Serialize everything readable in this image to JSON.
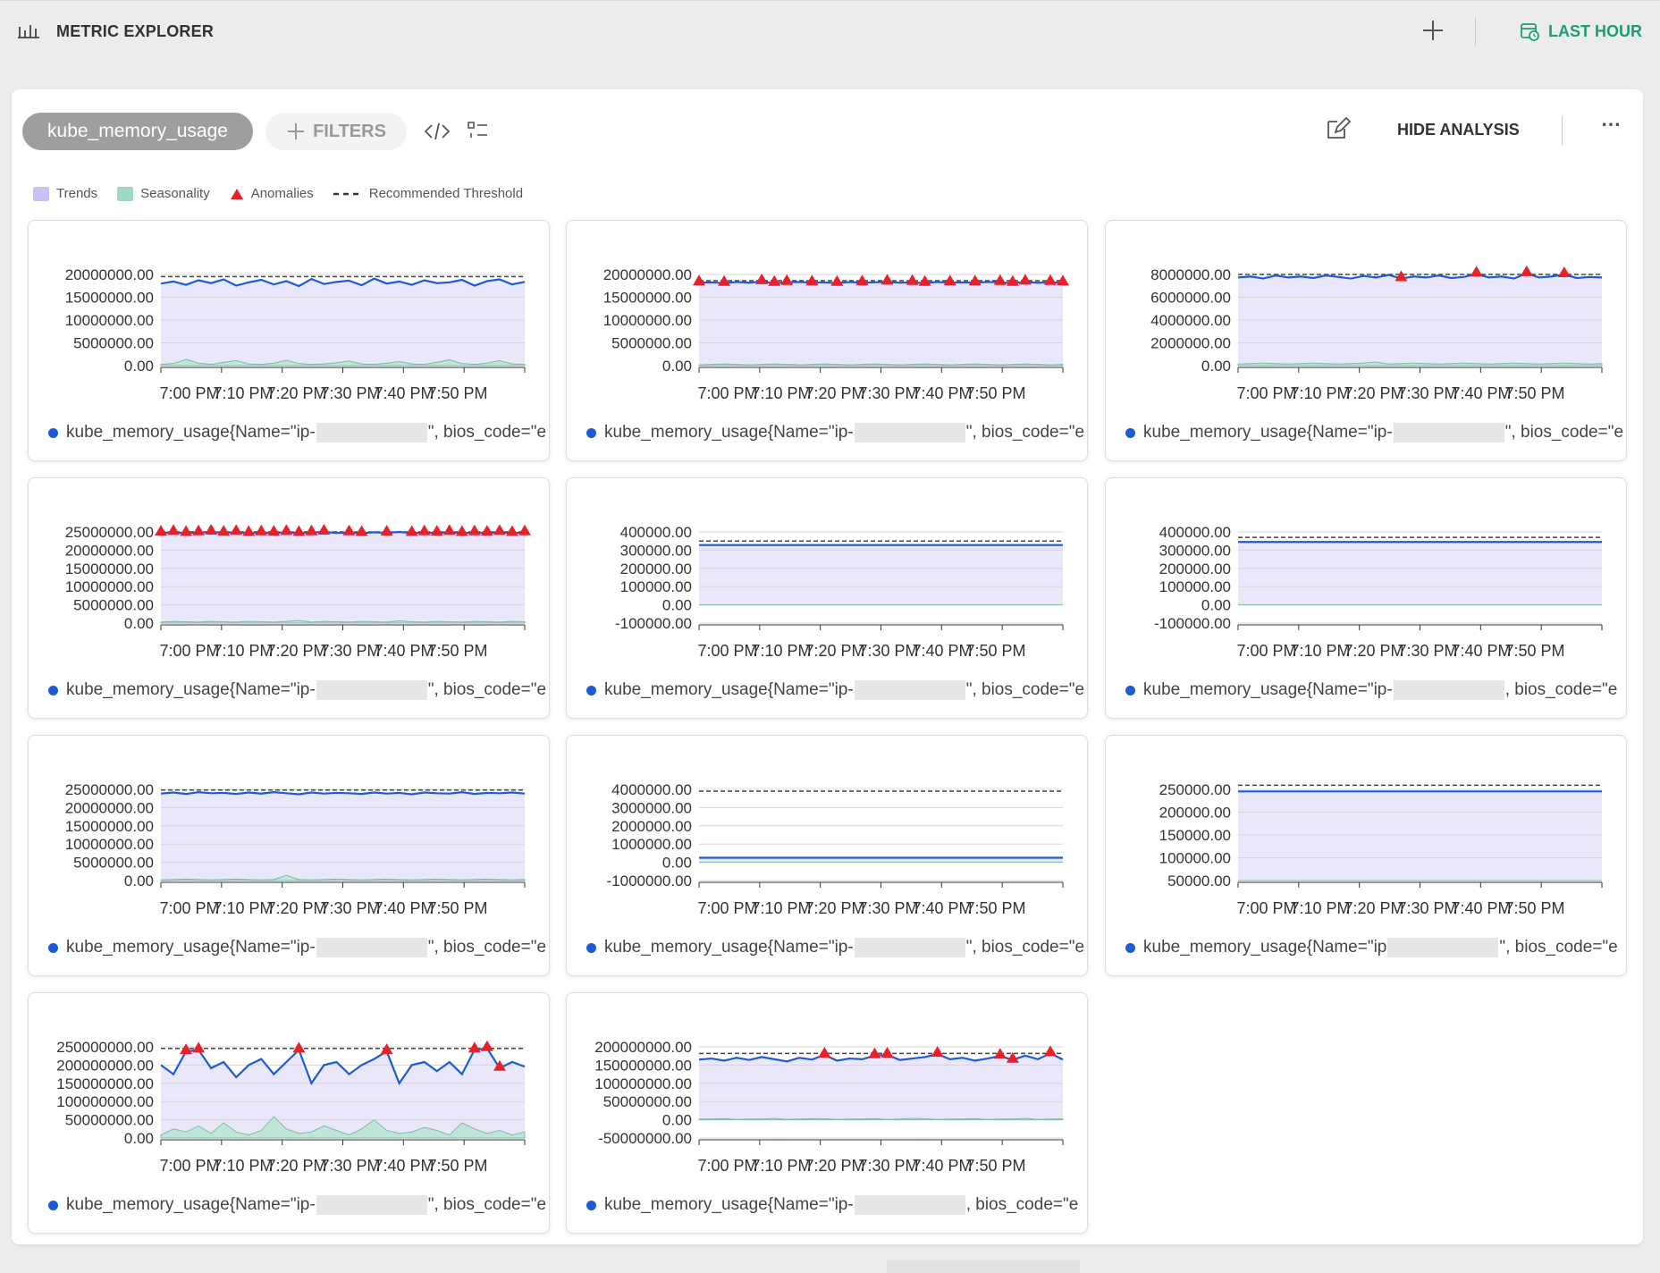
{
  "header": {
    "title": "METRIC EXPLORER",
    "time_range": "LAST HOUR",
    "accent_color": "#1d9e6f"
  },
  "toolbar": {
    "metric": "kube_memory_usage",
    "filters_label": "FILTERS",
    "hide_analysis_label": "HIDE ANALYSIS",
    "more_label": "⋯"
  },
  "legend": [
    {
      "label": "Trends",
      "color": "#c9c3f5",
      "kind": "swatch"
    },
    {
      "label": "Seasonality",
      "color": "#9ed9c6",
      "kind": "swatch"
    },
    {
      "label": "Anomalies",
      "color": "#e8202a",
      "kind": "triangle"
    },
    {
      "label": "Recommended Threshold",
      "color": "#333333",
      "kind": "dash"
    }
  ],
  "x_ticks": [
    "7:00 PM",
    "7:10 PM",
    "7:20 PM",
    "7:30 PM",
    "7:40 PM",
    "7:50 PM"
  ],
  "cards": [
    {
      "prefix": "kube_memory_usage{Name=\"ip-",
      "suffix": "\", bios_code=\"e"
    },
    {
      "prefix": "kube_memory_usage{Name=\"ip-",
      "suffix": "\", bios_code=\"e"
    },
    {
      "prefix": "kube_memory_usage{Name=\"ip-",
      "suffix": "\", bios_code=\"e"
    },
    {
      "prefix": "kube_memory_usage{Name=\"ip-",
      "suffix": "\", bios_code=\"e"
    },
    {
      "prefix": "kube_memory_usage{Name=\"ip-",
      "suffix": "\", bios_code=\"e"
    },
    {
      "prefix": "kube_memory_usage{Name=\"ip-",
      "suffix": ", bios_code=\"e"
    },
    {
      "prefix": "kube_memory_usage{Name=\"ip-",
      "suffix": "\", bios_code=\"e"
    },
    {
      "prefix": "kube_memory_usage{Name=\"ip-",
      "suffix": "\", bios_code=\"e"
    },
    {
      "prefix": "kube_memory_usage{Name=\"ip",
      "suffix": "\", bios_code=\"e"
    },
    {
      "prefix": "kube_memory_usage{Name=\"ip-",
      "suffix": "\", bios_code=\"e"
    },
    {
      "prefix": "kube_memory_usage{Name=\"ip-",
      "suffix": ", bios_code=\"e"
    }
  ],
  "chart_data": [
    {
      "type": "line",
      "yticks": [
        "20000000.00",
        "15000000.00",
        "10000000.00",
        "5000000.00",
        "0.00"
      ],
      "ylim": [
        0,
        22000000
      ],
      "threshold": 21500000,
      "values": [
        19800000,
        20300000,
        19500000,
        20600000,
        19900000,
        20800000,
        19300000,
        20100000,
        20700000,
        19600000,
        20400000,
        19200000,
        20900000,
        19700000,
        20200000,
        20500000,
        19400000,
        21000000,
        19800000,
        20300000,
        19500000,
        20600000,
        19900000,
        20100000,
        20700000,
        19300000,
        20400000,
        20800000,
        19600000,
        20200000
      ],
      "seasonality": [
        300000,
        500000,
        1500000,
        600000,
        300000,
        800000,
        1200000,
        400000,
        300000,
        600000,
        1300000,
        500000,
        300000,
        400000,
        700000,
        1100000,
        400000,
        300000,
        600000,
        1000000,
        400000,
        300000,
        800000,
        1400000,
        500000,
        300000,
        600000,
        1200000,
        400000,
        300000
      ],
      "anomalies": []
    },
    {
      "type": "line",
      "yticks": [
        "20000000.00",
        "15000000.00",
        "10000000.00",
        "5000000.00",
        "0.00"
      ],
      "ylim": [
        0,
        22000000
      ],
      "threshold": 20500000,
      "values": [
        20000000,
        20100000,
        19900000,
        20200000,
        20000000,
        20300000,
        19900000,
        20100000,
        20200000,
        20000000,
        20100000,
        19900000,
        20200000,
        20000000,
        20100000,
        20200000,
        20000000,
        20100000,
        19900000,
        20200000,
        20000000,
        20100000,
        20000000,
        20200000,
        20100000,
        19900000,
        20200000,
        20000000,
        20100000,
        20000000
      ],
      "seasonality": [
        200000,
        300000,
        400000,
        300000,
        200000,
        300000,
        400000,
        300000,
        200000,
        300000,
        400000,
        300000,
        200000,
        300000,
        400000,
        300000,
        200000,
        300000,
        400000,
        300000,
        200000,
        300000,
        400000,
        300000,
        200000,
        300000,
        400000,
        300000,
        200000,
        300000
      ],
      "anomalies": [
        0,
        2,
        5,
        6,
        7,
        9,
        11,
        13,
        15,
        17,
        18,
        20,
        22,
        24,
        25,
        26,
        28,
        29
      ]
    },
    {
      "type": "line",
      "yticks": [
        "8000000.00",
        "6000000.00",
        "4000000.00",
        "2000000.00",
        "0.00"
      ],
      "ylim": [
        0,
        9000000
      ],
      "threshold": 9000000,
      "values": [
        8700000,
        8800000,
        8600000,
        8900000,
        8700000,
        8800000,
        8650000,
        8900000,
        8750000,
        8600000,
        8850000,
        8700000,
        8950000,
        8600000,
        8800000,
        8700000,
        8900000,
        8650000,
        8750000,
        9050000,
        8700000,
        8800000,
        8600000,
        9100000,
        8700000,
        8800000,
        9000000,
        8650000,
        8750000,
        8700000
      ],
      "seasonality": [
        150000,
        200000,
        250000,
        200000,
        150000,
        200000,
        250000,
        200000,
        150000,
        200000,
        250000,
        350000,
        150000,
        200000,
        250000,
        200000,
        150000,
        200000,
        250000,
        200000,
        150000,
        200000,
        250000,
        200000,
        150000,
        200000,
        250000,
        200000,
        150000,
        200000
      ],
      "anomalies": [
        13,
        19,
        23,
        26
      ]
    },
    {
      "type": "line",
      "yticks": [
        "25000000.00",
        "20000000.00",
        "15000000.00",
        "10000000.00",
        "5000000.00",
        "0.00"
      ],
      "ylim": [
        0,
        28000000
      ],
      "threshold": 28000000,
      "values": [
        27700000,
        27900000,
        27600000,
        27800000,
        28000000,
        27700000,
        27900000,
        27600000,
        27800000,
        27700000,
        27900000,
        27600000,
        27800000,
        28000000,
        27700000,
        27800000,
        27600000,
        27900000,
        27700000,
        28000000,
        27600000,
        27800000,
        27700000,
        27900000,
        27600000,
        27800000,
        27700000,
        27900000,
        27600000,
        27800000
      ],
      "seasonality": [
        300000,
        500000,
        400000,
        300000,
        500000,
        400000,
        300000,
        500000,
        400000,
        300000,
        500000,
        800000,
        300000,
        500000,
        400000,
        300000,
        500000,
        400000,
        300000,
        700000,
        400000,
        300000,
        500000,
        400000,
        300000,
        500000,
        400000,
        300000,
        500000,
        400000
      ],
      "anomalies": [
        0,
        1,
        2,
        3,
        4,
        5,
        6,
        7,
        8,
        9,
        10,
        11,
        12,
        13,
        15,
        16,
        18,
        20,
        21,
        22,
        23,
        24,
        25,
        26,
        27,
        28,
        29
      ]
    },
    {
      "type": "line",
      "yticks": [
        "400000.00",
        "300000.00",
        "200000.00",
        "100000.00",
        "0.00",
        "-100000.00"
      ],
      "ylim": [
        -100000,
        400000
      ],
      "threshold": 350000,
      "values": [
        328000,
        328000,
        328000,
        328000,
        328000,
        328000,
        328000,
        328000,
        328000,
        328000,
        328000,
        328000,
        328000,
        328000,
        328000,
        328000,
        328000,
        328000,
        328000,
        328000,
        328000,
        328000,
        328000,
        328000,
        328000,
        328000,
        328000,
        328000,
        328000,
        328000
      ],
      "seasonality": [
        0,
        0,
        0,
        0,
        0,
        0,
        0,
        0,
        0,
        0,
        0,
        0,
        0,
        0,
        0,
        0,
        0,
        0,
        0,
        0,
        0,
        0,
        0,
        0,
        0,
        0,
        0,
        0,
        0,
        0
      ],
      "anomalies": []
    },
    {
      "type": "line",
      "yticks": [
        "400000.00",
        "300000.00",
        "200000.00",
        "100000.00",
        "0.00",
        "-100000.00"
      ],
      "ylim": [
        -100000,
        400000
      ],
      "threshold": 370000,
      "values": [
        345000,
        345000,
        345000,
        345000,
        345000,
        345000,
        345000,
        345000,
        345000,
        345000,
        345000,
        345000,
        345000,
        345000,
        345000,
        345000,
        345000,
        345000,
        345000,
        345000,
        345000,
        345000,
        345000,
        345000,
        345000,
        345000,
        345000,
        345000,
        345000,
        345000
      ],
      "seasonality": [
        0,
        0,
        0,
        0,
        0,
        0,
        0,
        0,
        0,
        0,
        0,
        0,
        0,
        0,
        0,
        0,
        0,
        0,
        0,
        0,
        0,
        0,
        0,
        0,
        0,
        0,
        0,
        0,
        0,
        0
      ],
      "anomalies": []
    },
    {
      "type": "line",
      "yticks": [
        "25000000.00",
        "20000000.00",
        "15000000.00",
        "10000000.00",
        "5000000.00",
        "0.00"
      ],
      "ylim": [
        0,
        26000000
      ],
      "threshold": 25800000,
      "values": [
        24800000,
        25100000,
        24700000,
        25200000,
        24900000,
        25000000,
        24700000,
        25100000,
        24800000,
        25200000,
        24900000,
        24600000,
        25100000,
        24800000,
        25000000,
        24900000,
        24700000,
        25100000,
        24800000,
        25000000,
        24600000,
        25100000,
        24900000,
        24800000,
        25200000,
        24700000,
        25000000,
        24900000,
        25100000,
        24800000
      ],
      "seasonality": [
        200000,
        300000,
        400000,
        300000,
        200000,
        300000,
        400000,
        300000,
        200000,
        300000,
        1500000,
        300000,
        200000,
        300000,
        400000,
        300000,
        200000,
        300000,
        400000,
        300000,
        200000,
        300000,
        400000,
        300000,
        200000,
        300000,
        400000,
        300000,
        200000,
        300000
      ],
      "anomalies": []
    },
    {
      "type": "line",
      "yticks": [
        "4000000.00",
        "3000000.00",
        "2000000.00",
        "1000000.00",
        "0.00",
        "-1000000.00"
      ],
      "ylim": [
        -1000000,
        4000000
      ],
      "threshold": 3900000,
      "values": [
        250000,
        250000,
        250000,
        250000,
        250000,
        250000,
        250000,
        250000,
        250000,
        250000,
        250000,
        250000,
        250000,
        250000,
        250000,
        250000,
        250000,
        250000,
        250000,
        250000,
        250000,
        250000,
        250000,
        250000,
        250000,
        250000,
        250000,
        250000,
        250000,
        250000
      ],
      "seasonality": [
        0,
        0,
        0,
        0,
        0,
        0,
        0,
        0,
        0,
        0,
        0,
        0,
        0,
        0,
        0,
        0,
        0,
        0,
        0,
        0,
        0,
        0,
        0,
        0,
        0,
        0,
        0,
        0,
        0,
        0
      ],
      "anomalies": []
    },
    {
      "type": "line",
      "yticks": [
        "250000.00",
        "200000.00",
        "150000.00",
        "100000.00",
        "50000.00"
      ],
      "ylim": [
        50000,
        270000
      ],
      "threshold": 280000,
      "values": [
        265000,
        265000,
        265000,
        265000,
        265000,
        265000,
        265000,
        265000,
        265000,
        265000,
        265000,
        265000,
        265000,
        265000,
        265000,
        265000,
        265000,
        265000,
        265000,
        265000,
        265000,
        265000,
        265000,
        265000,
        265000,
        265000,
        265000,
        265000,
        265000,
        265000
      ],
      "seasonality": [
        0,
        0,
        0,
        0,
        0,
        0,
        0,
        0,
        0,
        0,
        0,
        0,
        0,
        0,
        0,
        0,
        0,
        0,
        0,
        0,
        0,
        0,
        0,
        0,
        0,
        0,
        0,
        0,
        0,
        0
      ],
      "anomalies": []
    },
    {
      "type": "line",
      "yticks": [
        "250000000.00",
        "200000000.00",
        "150000000.00",
        "100000000.00",
        "50000000.00",
        "0.00"
      ],
      "ylim": [
        0,
        300000000
      ],
      "threshold": 295000000,
      "values": [
        240000000,
        210000000,
        285000000,
        290000000,
        230000000,
        250000000,
        200000000,
        240000000,
        260000000,
        210000000,
        250000000,
        290000000,
        180000000,
        240000000,
        250000000,
        210000000,
        240000000,
        260000000,
        285000000,
        180000000,
        240000000,
        250000000,
        220000000,
        250000000,
        210000000,
        290000000,
        295000000,
        230000000,
        250000000,
        235000000
      ],
      "seasonality": [
        10000000,
        30000000,
        20000000,
        40000000,
        15000000,
        50000000,
        20000000,
        10000000,
        25000000,
        70000000,
        30000000,
        15000000,
        20000000,
        40000000,
        25000000,
        10000000,
        30000000,
        60000000,
        25000000,
        15000000,
        20000000,
        35000000,
        25000000,
        10000000,
        50000000,
        30000000,
        15000000,
        25000000,
        10000000,
        20000000
      ],
      "anomalies": [
        2,
        3,
        11,
        18,
        25,
        26,
        27
      ]
    },
    {
      "type": "line",
      "yticks": [
        "200000000.00",
        "150000000.00",
        "100000000.00",
        "50000000.00",
        "0.00",
        "-50000000.00"
      ],
      "ylim": [
        -50000000,
        200000000
      ],
      "threshold": 182000000,
      "values": [
        165000000,
        168000000,
        162000000,
        170000000,
        164000000,
        172000000,
        166000000,
        160000000,
        170000000,
        165000000,
        178000000,
        162000000,
        168000000,
        166000000,
        176000000,
        178000000,
        164000000,
        168000000,
        172000000,
        180000000,
        166000000,
        170000000,
        162000000,
        168000000,
        175000000,
        164000000,
        176000000,
        166000000,
        182000000,
        165000000
      ],
      "seasonality": [
        2000000,
        -2000000,
        3000000,
        -1000000,
        2000000,
        -2000000,
        4000000,
        -1000000,
        2000000,
        -3000000,
        3000000,
        -1000000,
        2000000,
        -2000000,
        3000000,
        -1000000,
        2000000,
        -4000000,
        3000000,
        -1000000,
        2000000,
        -2000000,
        3000000,
        -1000000,
        2000000,
        -2000000,
        4000000,
        -1000000,
        2000000,
        -2000000
      ],
      "anomalies": [
        10,
        14,
        15,
        19,
        24,
        25,
        28
      ]
    }
  ]
}
